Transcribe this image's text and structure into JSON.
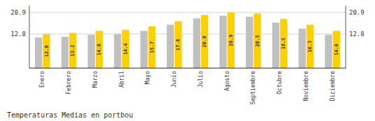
{
  "chart_data": {
    "type": "bar",
    "title": "Temperaturas Medias en portbou",
    "categories": [
      "Enero",
      "Febrero",
      "Marzo",
      "Abril",
      "Mayo",
      "Junio",
      "Julio",
      "Agosto",
      "Septiembre",
      "Octubre",
      "Noviembre",
      "Diciembre"
    ],
    "series": [
      {
        "color": "#C0C0C0",
        "values": [
          11.5,
          11.8,
          12.5,
          12.8,
          14.0,
          16.3,
          18.7,
          19.7,
          19.3,
          17.1,
          14.8,
          12.5
        ]
      },
      {
        "color": "#FFD000",
        "values": [
          12.8,
          13.2,
          14.0,
          14.4,
          15.7,
          17.6,
          20.0,
          20.9,
          20.5,
          18.5,
          16.3,
          14.0
        ],
        "data_labels": true,
        "value_labels": [
          "12.8",
          "13.2",
          "14.0",
          "14.4",
          "15.7",
          "17.6",
          "20.0",
          "20.9",
          "20.5",
          "18.5",
          "16.3",
          "14.0"
        ]
      }
    ],
    "ylim": [
      0,
      23.5
    ],
    "yticks": [
      12.8,
      20.9
    ],
    "y2lim": [
      0,
      23.5
    ],
    "y2ticks": [
      12.8,
      20.9
    ],
    "grid": true
  }
}
